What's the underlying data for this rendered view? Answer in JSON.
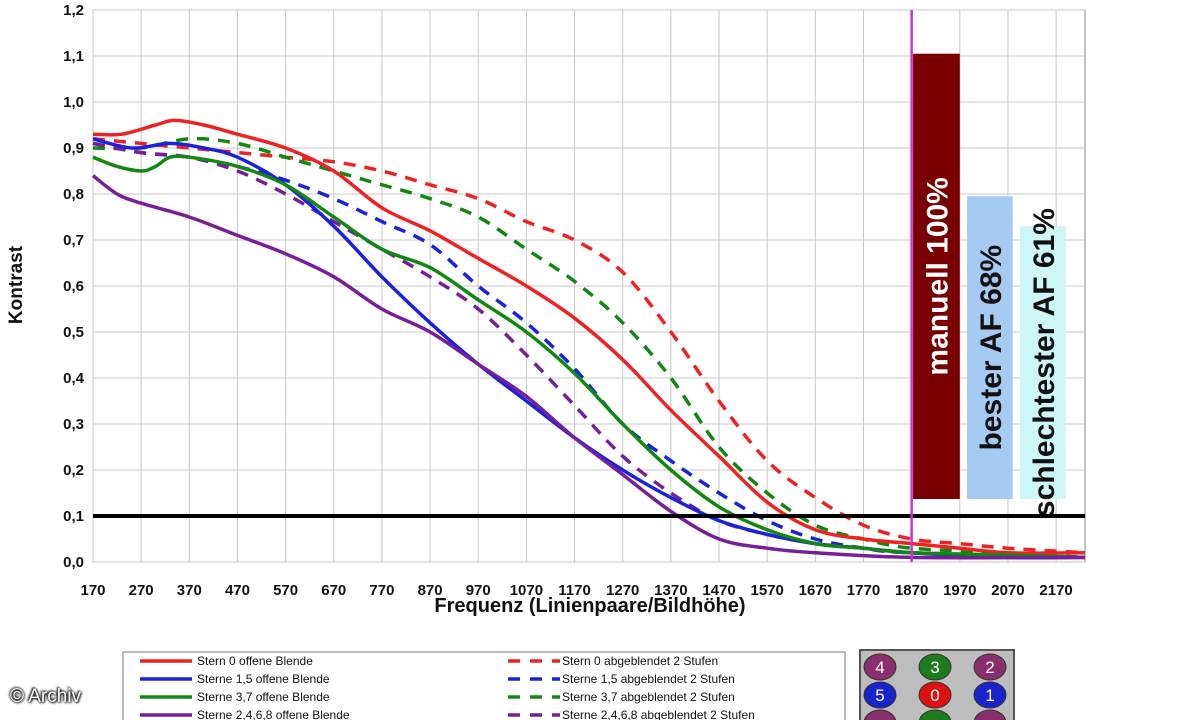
{
  "chart_data": {
    "type": "line",
    "title": "",
    "xlabel": "Frequenz (Linienpaare/Bildhöhe)",
    "ylabel": "Kontrast",
    "xlim": [
      170,
      2230
    ],
    "ylim": [
      0,
      1.2
    ],
    "grid": true,
    "x_tick_labels": [
      "170",
      "270",
      "370",
      "470",
      "570",
      "670",
      "770",
      "870",
      "970",
      "1070",
      "1170",
      "1270",
      "1370",
      "1470",
      "1570",
      "1670",
      "1770",
      "1870",
      "1970",
      "2070",
      "2170"
    ],
    "y_tick_labels": [
      "0,0",
      "0,1",
      "0,2",
      "0,3",
      "0,4",
      "0,5",
      "0,6",
      "0,7",
      "0,8",
      "0,9",
      "1,0",
      "1,1",
      "1,2"
    ],
    "reference_line": {
      "y": 0.1,
      "color": "#000000"
    },
    "marker_line": {
      "x": 1870,
      "color": "#cc33cc"
    },
    "series": [
      {
        "name": "Stern 0 offene Blende",
        "color": "#ee2222",
        "style": "solid",
        "points": [
          [
            170,
            0.93
          ],
          [
            230,
            0.93
          ],
          [
            300,
            0.95
          ],
          [
            340,
            0.96
          ],
          [
            400,
            0.95
          ],
          [
            470,
            0.93
          ],
          [
            570,
            0.9
          ],
          [
            670,
            0.85
          ],
          [
            770,
            0.77
          ],
          [
            870,
            0.72
          ],
          [
            970,
            0.66
          ],
          [
            1070,
            0.6
          ],
          [
            1170,
            0.53
          ],
          [
            1270,
            0.44
          ],
          [
            1370,
            0.33
          ],
          [
            1470,
            0.23
          ],
          [
            1570,
            0.13
          ],
          [
            1670,
            0.07
          ],
          [
            1770,
            0.05
          ],
          [
            1870,
            0.04
          ],
          [
            1970,
            0.03
          ],
          [
            2070,
            0.02
          ],
          [
            2230,
            0.02
          ]
        ]
      },
      {
        "name": "Sterne 1,5 offene Blende",
        "color": "#1a22dd",
        "style": "solid",
        "points": [
          [
            170,
            0.92
          ],
          [
            250,
            0.9
          ],
          [
            330,
            0.91
          ],
          [
            400,
            0.9
          ],
          [
            470,
            0.88
          ],
          [
            570,
            0.82
          ],
          [
            670,
            0.73
          ],
          [
            770,
            0.62
          ],
          [
            870,
            0.52
          ],
          [
            970,
            0.43
          ],
          [
            1070,
            0.35
          ],
          [
            1170,
            0.27
          ],
          [
            1270,
            0.2
          ],
          [
            1370,
            0.14
          ],
          [
            1470,
            0.09
          ],
          [
            1570,
            0.06
          ],
          [
            1670,
            0.04
          ],
          [
            1770,
            0.03
          ],
          [
            1870,
            0.02
          ],
          [
            2070,
            0.01
          ],
          [
            2230,
            0.01
          ]
        ]
      },
      {
        "name": "Sterne 3,7 offene Blende",
        "color": "#118811",
        "style": "solid",
        "points": [
          [
            170,
            0.88
          ],
          [
            220,
            0.86
          ],
          [
            270,
            0.85
          ],
          [
            300,
            0.86
          ],
          [
            330,
            0.88
          ],
          [
            370,
            0.88
          ],
          [
            470,
            0.86
          ],
          [
            570,
            0.82
          ],
          [
            670,
            0.75
          ],
          [
            770,
            0.68
          ],
          [
            870,
            0.64
          ],
          [
            970,
            0.57
          ],
          [
            1070,
            0.5
          ],
          [
            1170,
            0.41
          ],
          [
            1270,
            0.3
          ],
          [
            1370,
            0.2
          ],
          [
            1470,
            0.12
          ],
          [
            1570,
            0.07
          ],
          [
            1670,
            0.04
          ],
          [
            1770,
            0.03
          ],
          [
            1870,
            0.02
          ],
          [
            2070,
            0.015
          ],
          [
            2230,
            0.01
          ]
        ]
      },
      {
        "name": "Sterne 2,4,6,8 offene Blende",
        "color": "#771f99",
        "style": "solid",
        "points": [
          [
            170,
            0.84
          ],
          [
            220,
            0.8
          ],
          [
            270,
            0.78
          ],
          [
            370,
            0.75
          ],
          [
            470,
            0.71
          ],
          [
            570,
            0.67
          ],
          [
            670,
            0.62
          ],
          [
            770,
            0.55
          ],
          [
            870,
            0.5
          ],
          [
            970,
            0.43
          ],
          [
            1070,
            0.36
          ],
          [
            1170,
            0.27
          ],
          [
            1270,
            0.19
          ],
          [
            1370,
            0.11
          ],
          [
            1470,
            0.05
          ],
          [
            1570,
            0.03
          ],
          [
            1670,
            0.02
          ],
          [
            1870,
            0.01
          ],
          [
            2230,
            0.01
          ]
        ]
      },
      {
        "name": "Stern 0 abgeblendet 2 Stufen",
        "color": "#ee2222",
        "style": "dashed",
        "points": [
          [
            170,
            0.92
          ],
          [
            270,
            0.91
          ],
          [
            370,
            0.9
          ],
          [
            470,
            0.89
          ],
          [
            570,
            0.88
          ],
          [
            670,
            0.87
          ],
          [
            770,
            0.85
          ],
          [
            870,
            0.82
          ],
          [
            970,
            0.79
          ],
          [
            1070,
            0.74
          ],
          [
            1170,
            0.7
          ],
          [
            1270,
            0.63
          ],
          [
            1370,
            0.5
          ],
          [
            1470,
            0.35
          ],
          [
            1570,
            0.22
          ],
          [
            1670,
            0.14
          ],
          [
            1770,
            0.08
          ],
          [
            1870,
            0.05
          ],
          [
            1970,
            0.04
          ],
          [
            2070,
            0.03
          ],
          [
            2230,
            0.02
          ]
        ]
      },
      {
        "name": "Sterne 1,5 abgeblendet 2 Stufen",
        "color": "#1a22dd",
        "style": "dashed",
        "points": [
          [
            170,
            0.91
          ],
          [
            270,
            0.89
          ],
          [
            370,
            0.88
          ],
          [
            470,
            0.86
          ],
          [
            570,
            0.83
          ],
          [
            670,
            0.79
          ],
          [
            770,
            0.74
          ],
          [
            870,
            0.69
          ],
          [
            970,
            0.6
          ],
          [
            1070,
            0.52
          ],
          [
            1170,
            0.42
          ],
          [
            1270,
            0.3
          ],
          [
            1370,
            0.22
          ],
          [
            1470,
            0.15
          ],
          [
            1570,
            0.09
          ],
          [
            1670,
            0.05
          ],
          [
            1770,
            0.03
          ],
          [
            1870,
            0.02
          ],
          [
            2230,
            0.01
          ]
        ]
      },
      {
        "name": "Sterne 3,7 abgeblendet 2 Stufen",
        "color": "#118811",
        "style": "dashed",
        "points": [
          [
            170,
            0.9
          ],
          [
            270,
            0.9
          ],
          [
            370,
            0.92
          ],
          [
            470,
            0.91
          ],
          [
            570,
            0.88
          ],
          [
            670,
            0.85
          ],
          [
            770,
            0.82
          ],
          [
            870,
            0.79
          ],
          [
            970,
            0.75
          ],
          [
            1070,
            0.68
          ],
          [
            1170,
            0.61
          ],
          [
            1270,
            0.52
          ],
          [
            1370,
            0.4
          ],
          [
            1470,
            0.25
          ],
          [
            1570,
            0.15
          ],
          [
            1670,
            0.08
          ],
          [
            1770,
            0.05
          ],
          [
            1870,
            0.03
          ],
          [
            2070,
            0.02
          ],
          [
            2230,
            0.01
          ]
        ]
      },
      {
        "name": "Sterne 2,4,6,8 abgeblendet 2 Stufen",
        "color": "#771f99",
        "style": "dashed",
        "points": [
          [
            170,
            0.91
          ],
          [
            270,
            0.89
          ],
          [
            370,
            0.88
          ],
          [
            470,
            0.85
          ],
          [
            570,
            0.8
          ],
          [
            670,
            0.74
          ],
          [
            770,
            0.68
          ],
          [
            870,
            0.62
          ],
          [
            970,
            0.55
          ],
          [
            1070,
            0.45
          ],
          [
            1170,
            0.34
          ],
          [
            1270,
            0.23
          ],
          [
            1370,
            0.15
          ],
          [
            1470,
            0.09
          ],
          [
            1570,
            0.06
          ],
          [
            1670,
            0.04
          ],
          [
            1770,
            0.03
          ],
          [
            1870,
            0.02
          ],
          [
            2230,
            0.01
          ]
        ]
      }
    ],
    "bars": [
      {
        "label": "manuell 100%",
        "value": 1.105,
        "x_from": 1873,
        "x_to": 1970,
        "fill": "#7a0000",
        "text_color": "#ffffff"
      },
      {
        "label": "bester AF 68%",
        "value": 0.795,
        "x_from": 1985,
        "x_to": 2080,
        "fill": "#a5cbf2",
        "text_color": "#111111"
      },
      {
        "label": "schlechtester AF 61%",
        "value": 0.73,
        "x_from": 2095,
        "x_to": 2190,
        "fill": "#cdf6f6",
        "text_color": "#111111"
      }
    ]
  },
  "legend": {
    "entries": [
      {
        "label": "Stern 0 offene Blende",
        "color": "#ee2222",
        "style": "solid"
      },
      {
        "label": "Sterne 1,5 offene Blende",
        "color": "#1a22dd",
        "style": "solid"
      },
      {
        "label": "Sterne 3,7 offene Blende",
        "color": "#118811",
        "style": "solid"
      },
      {
        "label": "Sterne 2,4,6,8 offene Blende",
        "color": "#771f99",
        "style": "solid"
      },
      {
        "label": "Stern 0 abgeblendet 2 Stufen",
        "color": "#ee2222",
        "style": "dashed"
      },
      {
        "label": "Sterne 1,5 abgeblendet 2 Stufen",
        "color": "#1a22dd",
        "style": "dashed"
      },
      {
        "label": "Sterne 3,7 abgeblendet 2 Stufen",
        "color": "#118811",
        "style": "dashed"
      },
      {
        "label": "Sterne 2,4,6,8 abgeblendet 2 Stufen",
        "color": "#771f99",
        "style": "dashed"
      }
    ]
  },
  "star_map": {
    "badges": [
      {
        "label": "4",
        "color": "#8a2f6e"
      },
      {
        "label": "3",
        "color": "#1f7a1f"
      },
      {
        "label": "2",
        "color": "#8a2f6e"
      },
      {
        "label": "5",
        "color": "#1a22cc"
      },
      {
        "label": "0",
        "color": "#dd1111"
      },
      {
        "label": "1",
        "color": "#1a22cc"
      },
      {
        "label": "",
        "color": "#8a2f6e"
      },
      {
        "label": "",
        "color": "#1f7a1f"
      },
      {
        "label": "",
        "color": "#8a2f6e"
      }
    ]
  },
  "watermark": "© Archiv"
}
